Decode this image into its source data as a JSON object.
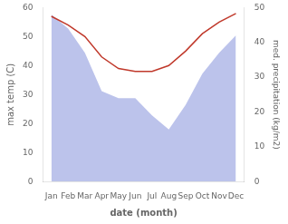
{
  "chart_data": {
    "type": "line",
    "categories": [
      "Jan",
      "Feb",
      "Mar",
      "Apr",
      "May",
      "Jun",
      "Jul",
      "Aug",
      "Sep",
      "Oct",
      "Nov",
      "Dec"
    ],
    "series": [
      {
        "type": "area",
        "color": "#b0b8e8",
        "axis": "y2",
        "values": [
          48,
          44,
          37,
          26,
          24,
          24,
          19,
          15,
          22,
          31,
          37,
          42
        ]
      },
      {
        "type": "line",
        "color": "#c0392b",
        "values": [
          57,
          54,
          50,
          43,
          39,
          38,
          38,
          40,
          45,
          51,
          55,
          58
        ]
      }
    ],
    "xlabel": "date (month)",
    "ylabel": "max temp (C)",
    "y2label": "med. precipitation (kg/m2)",
    "ylim": [
      0,
      60
    ],
    "yticks": [
      0,
      10,
      20,
      30,
      40,
      50,
      60
    ],
    "y2lim": [
      0,
      50
    ],
    "y2ticks": [
      0,
      10,
      20,
      30,
      40,
      50
    ],
    "grid": false
  }
}
